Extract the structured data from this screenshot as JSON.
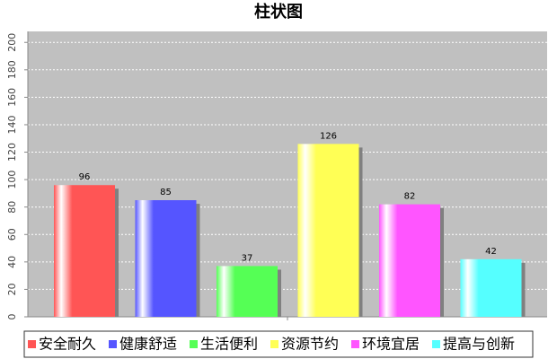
{
  "chart_data": {
    "type": "bar",
    "title": "柱状图",
    "series": [
      {
        "name": "安全耐久",
        "color": "#ff5555",
        "values": [
          96
        ]
      },
      {
        "name": "健康舒适",
        "color": "#5555ff",
        "values": [
          85
        ]
      },
      {
        "name": "生活便利",
        "color": "#55ff55",
        "values": [
          37
        ]
      },
      {
        "name": "资源节约",
        "color": "#ffff55",
        "values": [
          126
        ]
      },
      {
        "name": "环境宜居",
        "color": "#ff55ff",
        "values": [
          82
        ]
      },
      {
        "name": "提高与创新",
        "color": "#55ffff",
        "values": [
          42
        ]
      }
    ],
    "ylim": [
      0,
      208
    ],
    "yticks": [
      0,
      20,
      40,
      60,
      80,
      100,
      120,
      140,
      160,
      180,
      200
    ],
    "grid": true
  }
}
